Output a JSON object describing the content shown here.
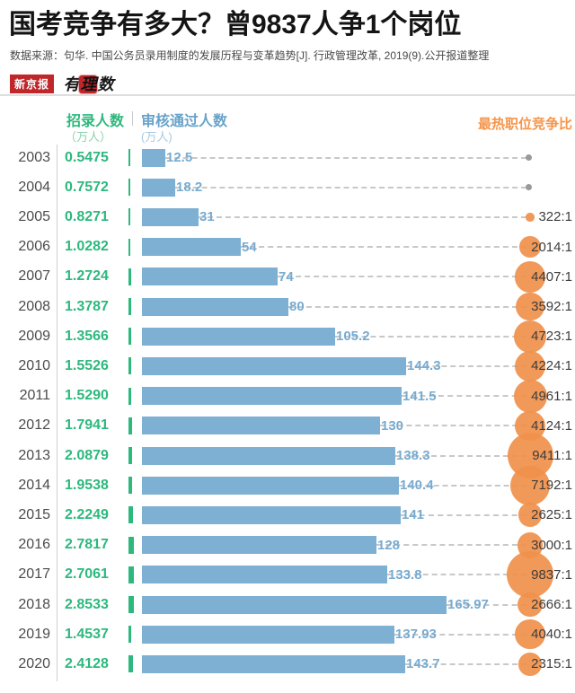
{
  "header": {
    "title": "国考竞争有多大？曾9837人争1个岗位",
    "source": "数据来源：句华. 中国公务员录用制度的发展历程与变革趋势[J]. 行政管理改革, 2019(9).公开报道整理",
    "logo_primary": "新京报",
    "logo_secondary_left": "有",
    "logo_secondary_mid": "理",
    "logo_secondary_right": "数"
  },
  "legend": {
    "recruit_label": "招录人数",
    "recruit_unit": "（万人）",
    "approved_label": "审核通过人数",
    "approved_unit": "(万人)",
    "ratio_label": "最热职位竞争比"
  },
  "colors": {
    "green": "#2db87d",
    "green_light": "#8ad2ae",
    "blue_bar": "#7eb0d3",
    "blue_text": "#77abd1",
    "orange": "#f0914b",
    "dash_gray": "#c8c8c8",
    "text_dark": "#3d3d3d",
    "logo_red": "#c0272b"
  },
  "chart_data": {
    "type": "bar",
    "title": "国考竞争有多大？曾9837人争1个岗位",
    "orientation": "horizontal",
    "categories": [
      2003,
      2004,
      2005,
      2006,
      2007,
      2008,
      2009,
      2010,
      2011,
      2012,
      2013,
      2014,
      2015,
      2016,
      2017,
      2018,
      2019,
      2020
    ],
    "series": [
      {
        "name": "招录人数(万人)",
        "values": [
          0.5475,
          0.7572,
          0.8271,
          1.0282,
          1.2724,
          1.3787,
          1.3566,
          1.5526,
          1.529,
          1.7941,
          2.0879,
          1.9538,
          2.2249,
          2.7817,
          2.7061,
          2.8533,
          1.4537,
          2.4128
        ]
      },
      {
        "name": "审核通过人数(万人)",
        "values": [
          12.5,
          18.2,
          31,
          54,
          74,
          80,
          105.2,
          144.3,
          141.5,
          130,
          138.3,
          140.4,
          141,
          128,
          133.8,
          165.97,
          137.93,
          143.7
        ]
      },
      {
        "name": "最热职位竞争比",
        "values": [
          null,
          null,
          322,
          2014,
          4407,
          3592,
          4723,
          4224,
          4961,
          4124,
          9411,
          7192,
          2625,
          3000,
          9837,
          2666,
          4040,
          2315
        ]
      }
    ],
    "legend_position": "top",
    "grid": false,
    "xlim_bar": [
      0,
      170
    ]
  },
  "rows": [
    {
      "year": "2003",
      "recruit": "0.5475",
      "approved": 12.5,
      "approved_label": "12.5",
      "ratio": null,
      "ratio_label": ""
    },
    {
      "year": "2004",
      "recruit": "0.7572",
      "approved": 18.2,
      "approved_label": "18.2",
      "ratio": null,
      "ratio_label": ""
    },
    {
      "year": "2005",
      "recruit": "0.8271",
      "approved": 31,
      "approved_label": "31",
      "ratio": 322,
      "ratio_label": "322:1"
    },
    {
      "year": "2006",
      "recruit": "1.0282",
      "approved": 54,
      "approved_label": "54",
      "ratio": 2014,
      "ratio_label": "2014:1"
    },
    {
      "year": "2007",
      "recruit": "1.2724",
      "approved": 74,
      "approved_label": "74",
      "ratio": 4407,
      "ratio_label": "4407:1"
    },
    {
      "year": "2008",
      "recruit": "1.3787",
      "approved": 80,
      "approved_label": "80",
      "ratio": 3592,
      "ratio_label": "3592:1"
    },
    {
      "year": "2009",
      "recruit": "1.3566",
      "approved": 105.2,
      "approved_label": "105.2",
      "ratio": 4723,
      "ratio_label": "4723:1"
    },
    {
      "year": "2010",
      "recruit": "1.5526",
      "approved": 144.3,
      "approved_label": "144.3",
      "ratio": 4224,
      "ratio_label": "4224:1"
    },
    {
      "year": "2011",
      "recruit": "1.5290",
      "approved": 141.5,
      "approved_label": "141.5",
      "ratio": 4961,
      "ratio_label": "4961:1"
    },
    {
      "year": "2012",
      "recruit": "1.7941",
      "approved": 130,
      "approved_label": "130",
      "ratio": 4124,
      "ratio_label": "4124:1"
    },
    {
      "year": "2013",
      "recruit": "2.0879",
      "approved": 138.3,
      "approved_label": "138.3",
      "ratio": 9411,
      "ratio_label": "9411:1"
    },
    {
      "year": "2014",
      "recruit": "1.9538",
      "approved": 140.4,
      "approved_label": "140.4",
      "ratio": 7192,
      "ratio_label": "7192:1"
    },
    {
      "year": "2015",
      "recruit": "2.2249",
      "approved": 141,
      "approved_label": "141",
      "ratio": 2625,
      "ratio_label": "2625:1"
    },
    {
      "year": "2016",
      "recruit": "2.7817",
      "approved": 128,
      "approved_label": "128",
      "ratio": 3000,
      "ratio_label": "3000:1"
    },
    {
      "year": "2017",
      "recruit": "2.7061",
      "approved": 133.8,
      "approved_label": "133.8",
      "ratio": 9837,
      "ratio_label": "9837:1"
    },
    {
      "year": "2018",
      "recruit": "2.8533",
      "approved": 165.97,
      "approved_label": "165.97",
      "ratio": 2666,
      "ratio_label": "2666:1"
    },
    {
      "year": "2019",
      "recruit": "1.4537",
      "approved": 137.93,
      "approved_label": "137.93",
      "ratio": 4040,
      "ratio_label": "4040:1"
    },
    {
      "year": "2020",
      "recruit": "2.4128",
      "approved": 143.7,
      "approved_label": "143.7",
      "ratio": 2315,
      "ratio_label": "2315:1"
    }
  ]
}
